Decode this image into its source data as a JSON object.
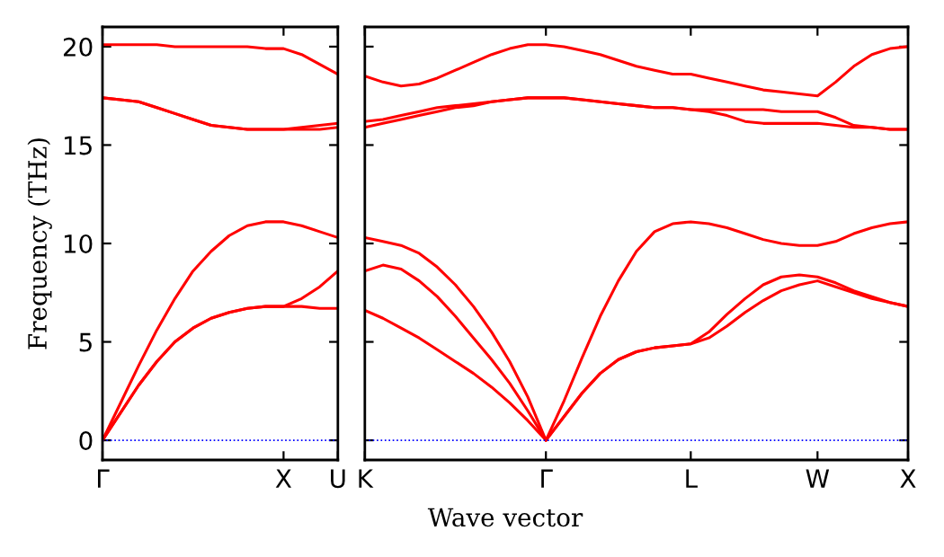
{
  "chart_data": [
    {
      "type": "line",
      "ylabel": "Frequency (THz)",
      "ylim": [
        -1,
        21
      ],
      "categories": [
        "Γ",
        null,
        null,
        null,
        null,
        null,
        null,
        null,
        null,
        null,
        "X",
        null,
        null,
        "U"
      ],
      "yticks": [
        0,
        5,
        10,
        15,
        20
      ],
      "ref_lines": [
        {
          "axis": "y",
          "value": 0,
          "color": "#0000ff",
          "line_style": "dotted"
        }
      ],
      "series": [
        {
          "color": "#ff0000",
          "values": [
            20.1,
            20.1,
            20.1,
            20.1,
            20.0,
            20.0,
            20.0,
            20.0,
            20.0,
            19.9,
            19.9,
            19.6,
            19.1,
            18.6
          ]
        },
        {
          "color": "#ff0000",
          "values": [
            17.4,
            17.3,
            17.2,
            16.9,
            16.6,
            16.3,
            16.0,
            15.9,
            15.8,
            15.8,
            15.8,
            15.9,
            16.0,
            16.1
          ]
        },
        {
          "color": "#ff0000",
          "values": [
            17.4,
            17.3,
            17.2,
            16.9,
            16.6,
            16.3,
            16.0,
            15.9,
            15.8,
            15.8,
            15.8,
            15.8,
            15.8,
            15.9
          ]
        },
        {
          "color": "#ff0000",
          "values": [
            0,
            1.9,
            3.8,
            5.6,
            7.2,
            8.6,
            9.6,
            10.4,
            10.9,
            11.1,
            11.1,
            10.9,
            10.6,
            10.3
          ]
        },
        {
          "color": "#ff0000",
          "values": [
            0,
            1.4,
            2.8,
            4.0,
            5.0,
            5.7,
            6.2,
            6.5,
            6.7,
            6.8,
            6.8,
            7.2,
            7.8,
            8.6
          ]
        },
        {
          "color": "#ff0000",
          "values": [
            0,
            1.4,
            2.8,
            4.0,
            5.0,
            5.7,
            6.2,
            6.5,
            6.7,
            6.8,
            6.8,
            6.8,
            6.7,
            6.7
          ]
        }
      ]
    },
    {
      "type": "line",
      "xlabel": "Wave vector",
      "ylim": [
        -1,
        21
      ],
      "tick_labels": "x",
      "categories": [
        "K",
        null,
        null,
        null,
        null,
        null,
        null,
        null,
        null,
        null,
        "Γ",
        null,
        null,
        null,
        null,
        null,
        null,
        null,
        "L",
        null,
        null,
        null,
        null,
        null,
        null,
        "W",
        null,
        null,
        null,
        null,
        "X"
      ],
      "yticks": [
        0,
        5,
        10,
        15,
        20
      ],
      "ref_lines": [
        {
          "axis": "y",
          "value": 0,
          "color": "#0000ff",
          "line_style": "dotted"
        }
      ],
      "series": [
        {
          "color": "#ff0000",
          "values": [
            18.5,
            18.2,
            18.0,
            18.1,
            18.4,
            18.8,
            19.2,
            19.6,
            19.9,
            20.1,
            20.1,
            20.0,
            19.8,
            19.6,
            19.3,
            19.0,
            18.8,
            18.6,
            18.6,
            18.4,
            18.2,
            18.0,
            17.8,
            17.7,
            17.6,
            17.5,
            18.2,
            19.0,
            19.6,
            19.9,
            20.0
          ]
        },
        {
          "color": "#ff0000",
          "values": [
            15.9,
            16.1,
            16.3,
            16.5,
            16.7,
            16.9,
            17.0,
            17.2,
            17.3,
            17.4,
            17.4,
            17.4,
            17.3,
            17.2,
            17.1,
            17.0,
            16.9,
            16.9,
            16.8,
            16.8,
            16.8,
            16.8,
            16.8,
            16.7,
            16.7,
            16.7,
            16.4,
            16.0,
            15.9,
            15.8,
            15.8
          ]
        },
        {
          "color": "#ff0000",
          "values": [
            16.2,
            16.3,
            16.5,
            16.7,
            16.9,
            17.0,
            17.1,
            17.2,
            17.3,
            17.4,
            17.4,
            17.4,
            17.3,
            17.2,
            17.1,
            17.0,
            16.9,
            16.9,
            16.8,
            16.7,
            16.5,
            16.2,
            16.1,
            16.1,
            16.1,
            16.1,
            16.0,
            15.9,
            15.9,
            15.8,
            15.8
          ]
        },
        {
          "color": "#ff0000",
          "values": [
            10.3,
            10.1,
            9.9,
            9.5,
            8.8,
            7.9,
            6.8,
            5.5,
            4.0,
            2.2,
            0,
            2.0,
            4.2,
            6.3,
            8.1,
            9.6,
            10.6,
            11.0,
            11.1,
            11.0,
            10.8,
            10.5,
            10.2,
            10.0,
            9.9,
            9.9,
            10.1,
            10.5,
            10.8,
            11.0,
            11.1
          ]
        },
        {
          "color": "#ff0000",
          "values": [
            8.6,
            8.9,
            8.7,
            8.1,
            7.3,
            6.3,
            5.2,
            4.1,
            2.9,
            1.5,
            0,
            1.2,
            2.4,
            3.4,
            4.1,
            4.5,
            4.7,
            4.8,
            4.9,
            5.5,
            6.4,
            7.2,
            7.9,
            8.3,
            8.4,
            8.3,
            8.0,
            7.6,
            7.3,
            7.0,
            6.8
          ]
        },
        {
          "color": "#ff0000",
          "values": [
            6.6,
            6.2,
            5.7,
            5.2,
            4.6,
            4.0,
            3.4,
            2.7,
            1.9,
            1.0,
            0,
            1.2,
            2.4,
            3.4,
            4.1,
            4.5,
            4.7,
            4.8,
            4.9,
            5.2,
            5.8,
            6.5,
            7.1,
            7.6,
            7.9,
            8.1,
            7.8,
            7.5,
            7.2,
            7.0,
            6.8
          ]
        }
      ]
    }
  ]
}
